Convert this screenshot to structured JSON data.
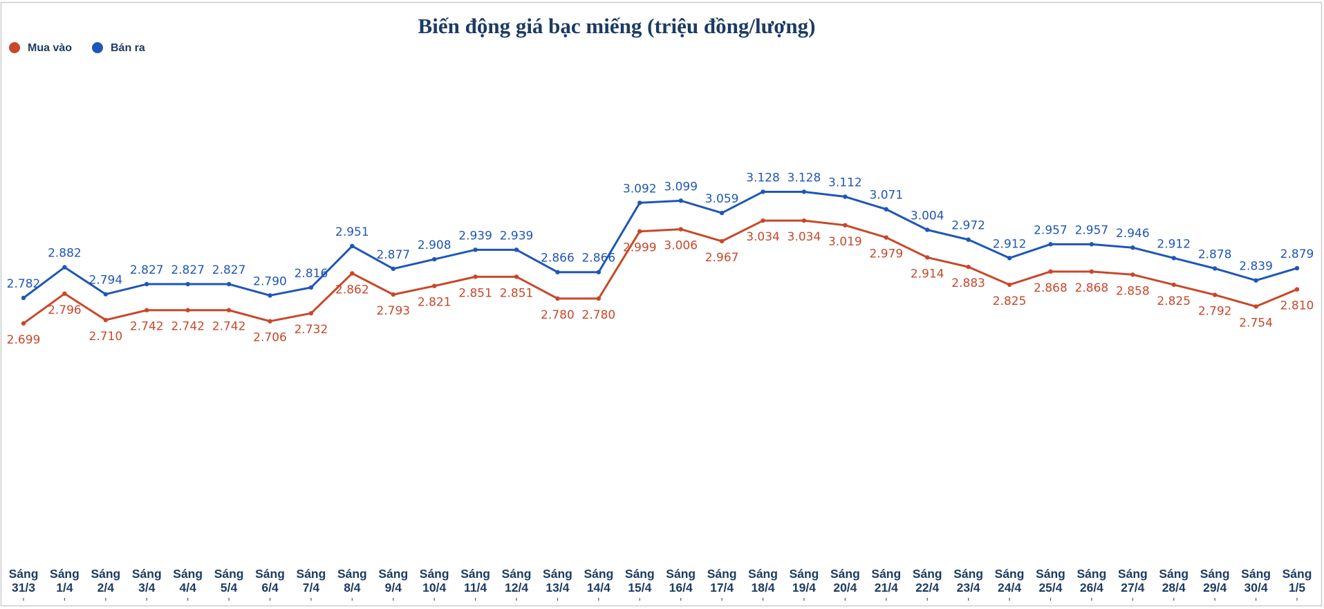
{
  "chart_data": {
    "type": "line",
    "title": "Biến động giá bạc miếng (triệu đồng/lượng)",
    "xlabel": "",
    "ylabel": "",
    "ylim": [
      2.0,
      3.6
    ],
    "grid": false,
    "legend_position": "top-left",
    "categories": [
      [
        "Sáng",
        "31/3"
      ],
      [
        "Sáng",
        "1/4"
      ],
      [
        "Sáng",
        "2/4"
      ],
      [
        "Sáng",
        "3/4"
      ],
      [
        "Sáng",
        "4/4"
      ],
      [
        "Sáng",
        "5/4"
      ],
      [
        "Sáng",
        "6/4"
      ],
      [
        "Sáng",
        "7/4"
      ],
      [
        "Sáng",
        "8/4"
      ],
      [
        "Sáng",
        "9/4"
      ],
      [
        "Sáng",
        "10/4"
      ],
      [
        "Sáng",
        "11/4"
      ],
      [
        "Sáng",
        "12/4"
      ],
      [
        "Sáng",
        "13/4"
      ],
      [
        "Sáng",
        "14/4"
      ],
      [
        "Sáng",
        "15/4"
      ],
      [
        "Sáng",
        "16/4"
      ],
      [
        "Sáng",
        "17/4"
      ],
      [
        "Sáng",
        "18/4"
      ],
      [
        "Sáng",
        "19/4"
      ],
      [
        "Sáng",
        "20/4"
      ],
      [
        "Sáng",
        "21/4"
      ],
      [
        "Sáng",
        "22/4"
      ],
      [
        "Sáng",
        "23/4"
      ],
      [
        "Sáng",
        "24/4"
      ],
      [
        "Sáng",
        "25/4"
      ],
      [
        "Sáng",
        "26/4"
      ],
      [
        "Sáng",
        "27/4"
      ],
      [
        "Sáng",
        "28/4"
      ],
      [
        "Sáng",
        "29/4"
      ],
      [
        "Sáng",
        "30/4"
      ],
      [
        "Sáng",
        "1/5"
      ]
    ],
    "series": [
      {
        "name": "Mua vào",
        "color": "#c9472a",
        "label_position": "below",
        "values": [
          2.699,
          2.796,
          2.71,
          2.742,
          2.742,
          2.742,
          2.706,
          2.732,
          2.862,
          2.793,
          2.821,
          2.851,
          2.851,
          2.78,
          2.78,
          2.999,
          3.006,
          2.967,
          3.034,
          3.034,
          3.019,
          2.979,
          2.914,
          2.883,
          2.825,
          2.868,
          2.868,
          2.858,
          2.825,
          2.792,
          2.754,
          2.81
        ],
        "labels": [
          "2.699",
          "2.796",
          "2.710",
          "2.742",
          "2.742",
          "2.742",
          "2.706",
          "2.732",
          "2.862",
          "2.793",
          "2.821",
          "2.851",
          "2.851",
          "2.780",
          "2.780",
          "2.999",
          "3.006",
          "2.967",
          "3.034",
          "3.034",
          "3.019",
          "2.979",
          "2.914",
          "2.883",
          "2.825",
          "2.868",
          "2.868",
          "2.858",
          "2.825",
          "2.792",
          "2.754",
          "2.810"
        ]
      },
      {
        "name": "Bán ra",
        "color": "#1f56b8",
        "label_position": "above",
        "values": [
          2.782,
          2.882,
          2.794,
          2.827,
          2.827,
          2.827,
          2.79,
          2.816,
          2.951,
          2.877,
          2.908,
          2.939,
          2.939,
          2.866,
          2.866,
          3.092,
          3.099,
          3.059,
          3.128,
          3.128,
          3.112,
          3.071,
          3.004,
          2.972,
          2.912,
          2.957,
          2.957,
          2.946,
          2.912,
          2.878,
          2.839,
          2.879
        ],
        "labels": [
          "2.782",
          "2.882",
          "2.794",
          "2.827",
          "2.827",
          "2.827",
          "2.790",
          "2.816",
          "2.951",
          "2.877",
          "2.908",
          "2.939",
          "2.939",
          "2.866",
          "2.866",
          "3.092",
          "3.099",
          "3.059",
          "3.128",
          "3.128",
          "3.112",
          "3.071",
          "3.004",
          "2.972",
          "2.912",
          "2.957",
          "2.957",
          "2.946",
          "2.912",
          "2.878",
          "2.839",
          "2.879"
        ]
      }
    ],
    "colors": {
      "title": "#1c3b63",
      "tick_label": "#1c3b63",
      "legend_text": "#1c3b63",
      "frame": "#cccccc",
      "axis_ticks": "#555555"
    }
  }
}
